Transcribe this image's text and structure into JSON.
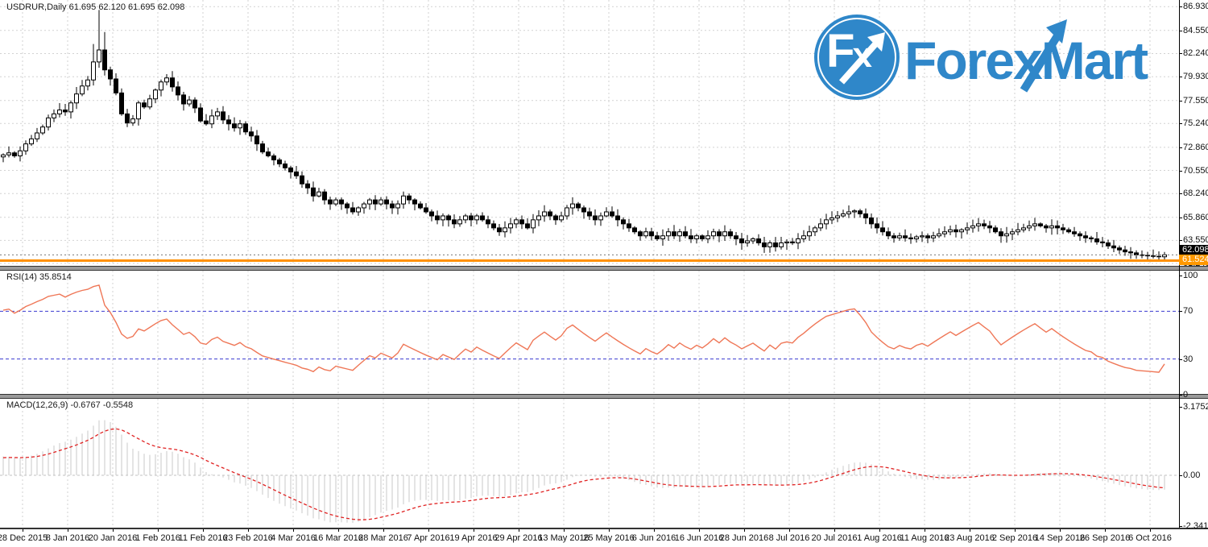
{
  "header": {
    "symbol_info": "USDRUR,Daily  61.695 62.120 61.695 62.098"
  },
  "logo": {
    "icon_text_f": "F",
    "icon_text_x": "x",
    "wordmark": "ForexMart",
    "blue": "#2f87c9"
  },
  "main_panel": {
    "price_labels": [
      "86.930",
      "84.550",
      "82.240",
      "79.930",
      "77.550",
      "75.240",
      "72.860",
      "70.550",
      "68.240",
      "65.860",
      "63.550",
      "61.240"
    ],
    "bid_badge": "62.098",
    "level_badge": "61.524",
    "bid_badge_bg": "#000000",
    "level_badge_bg": "#ff9800",
    "grid_color": "#d2d2d2",
    "candle_up_fill": "#ffffff",
    "candle_down_fill": "#000000",
    "candle_stroke": "#000000",
    "orange_line_color": "#ff9000",
    "bid_line_color": "#777777"
  },
  "rsi_panel": {
    "label": "RSI(14) 35.8514",
    "axis_labels": [
      {
        "v": 100,
        "t": "100"
      },
      {
        "v": 70,
        "t": "70"
      },
      {
        "v": 30,
        "t": "30"
      },
      {
        "v": 0,
        "t": "0"
      }
    ],
    "level_lines": [
      70,
      30
    ],
    "line_color": "#ef7757",
    "level_color": "#3a3ad0"
  },
  "macd_panel": {
    "label": "MACD(12,26,9) -0.6767 -0.5548",
    "axis_labels": [
      {
        "v": 3.1752,
        "t": "3.1752"
      },
      {
        "v": 0,
        "t": "0.00"
      },
      {
        "v": -2.3417,
        "t": "-2.3417"
      }
    ],
    "hist_color": "#c9c9c9",
    "signal_color": "#e02222",
    "zero_line_color": "#c0c0c0"
  },
  "date_axis": {
    "labels": [
      "28 Dec 2015",
      "8 Jan 2016",
      "20 Jan 2016",
      "1 Feb 2016",
      "11 Feb 2016",
      "23 Feb 2016",
      "4 Mar 2016",
      "16 Mar 2016",
      "28 Mar 2016",
      "7 Apr 2016",
      "19 Apr 2016",
      "29 Apr 2016",
      "13 May 2016",
      "25 May 2016",
      "6 Jun 2016",
      "16 Jun 2016",
      "28 Jun 2016",
      "8 Jul 2016",
      "20 Jul 2016",
      "1 Aug 2016",
      "11 Aug 2016",
      "23 Aug 2016",
      "2 Sep 2016",
      "14 Sep 2016",
      "26 Sep 2016",
      "6 Oct 2016"
    ]
  },
  "chart_data": {
    "type": "candlestick",
    "symbol": "USDRUR",
    "timeframe": "Daily",
    "ohlc_current": {
      "open": 61.695,
      "high": 62.12,
      "low": 61.695,
      "close": 62.098
    },
    "price_axis": {
      "ylim": [
        61.0,
        87.6
      ]
    },
    "bid_line": 62.098,
    "orange_level": 61.524,
    "first_open": 71.9,
    "high_overrides": {
      "16": 83.2,
      "17": 86.6,
      "18": 84.4
    },
    "closes": [
      72.1,
      72.3,
      72.0,
      72.5,
      73.2,
      73.7,
      74.3,
      74.9,
      75.8,
      76.2,
      76.6,
      76.4,
      77.3,
      78.2,
      79.0,
      79.6,
      81.4,
      82.6,
      80.6,
      79.7,
      78.3,
      76.2,
      75.3,
      75.7,
      77.3,
      76.9,
      77.7,
      78.6,
      79.4,
      79.8,
      78.9,
      78.1,
      77.2,
      77.6,
      76.8,
      75.5,
      75.2,
      76.0,
      76.4,
      75.6,
      75.2,
      74.8,
      75.2,
      74.4,
      74.0,
      73.2,
      72.4,
      72.0,
      71.6,
      71.2,
      70.8,
      70.4,
      70.0,
      69.2,
      68.8,
      68.0,
      68.4,
      67.6,
      67.2,
      67.6,
      67.2,
      66.8,
      66.4,
      66.8,
      67.2,
      67.6,
      67.2,
      67.6,
      67.2,
      66.8,
      67.2,
      68.0,
      67.6,
      67.2,
      66.8,
      66.4,
      66.0,
      65.6,
      66.0,
      65.6,
      65.2,
      65.6,
      66.0,
      65.6,
      66.0,
      65.6,
      65.2,
      64.8,
      64.4,
      64.8,
      65.2,
      65.6,
      65.2,
      64.8,
      65.6,
      66.0,
      66.4,
      66.0,
      65.6,
      66.0,
      66.8,
      67.2,
      66.8,
      66.4,
      66.0,
      65.6,
      66.0,
      66.4,
      66.0,
      65.6,
      65.2,
      64.8,
      64.4,
      64.0,
      64.4,
      64.0,
      63.7,
      64.0,
      64.4,
      64.0,
      64.4,
      64.0,
      63.7,
      64.0,
      63.7,
      64.0,
      64.4,
      64.0,
      64.4,
      64.0,
      63.7,
      63.3,
      63.5,
      63.7,
      63.3,
      62.9,
      63.3,
      62.9,
      63.3,
      63.4,
      63.3,
      63.7,
      64.0,
      64.4,
      64.8,
      65.2,
      65.6,
      65.8,
      66.0,
      66.2,
      66.4,
      66.5,
      66.2,
      65.8,
      65.2,
      64.8,
      64.4,
      64.0,
      63.8,
      64.0,
      63.8,
      63.7,
      63.9,
      64.0,
      63.8,
      64.0,
      64.2,
      64.4,
      64.6,
      64.4,
      64.6,
      64.8,
      65.0,
      65.2,
      65.0,
      64.8,
      64.4,
      64.0,
      64.2,
      64.4,
      64.6,
      64.8,
      65.0,
      65.2,
      65.0,
      64.8,
      65.0,
      64.8,
      64.6,
      64.4,
      64.2,
      64.0,
      63.8,
      63.7,
      63.4,
      63.3,
      63.0,
      62.8,
      62.6,
      62.4,
      62.3,
      62.1,
      62.05,
      62.0,
      61.95,
      61.9,
      62.1
    ],
    "rsi": {
      "period": 14,
      "current": 35.8514,
      "overbought": 70,
      "oversold": 30
    },
    "macd": {
      "fast": 12,
      "slow": 26,
      "signal_period": 9,
      "main_current": -0.6767,
      "signal_current": -0.5548,
      "axis_max": 3.1752,
      "axis_min": -2.3417
    }
  }
}
